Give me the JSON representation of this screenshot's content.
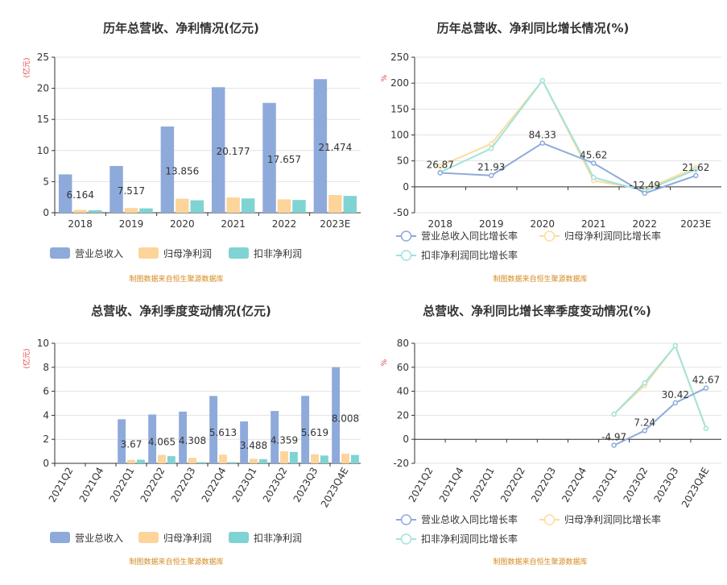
{
  "colors": {
    "revenue": "#8eaadb",
    "parent_profit": "#fdd49a",
    "deducted_profit": "#7fd3d3",
    "revenue_line": "#8eaadb",
    "parent_line": "#fddc9a",
    "deducted_line": "#9fe3dc",
    "source_text": "#d48a1f",
    "unit_text": "#e4393c"
  },
  "source": "制图数据来自恒生聚源数据库",
  "chart_data": [
    {
      "type": "bar",
      "title": "历年总营收、净利情况(亿元)",
      "ylabel": "(亿元)",
      "ylim": [
        0,
        25
      ],
      "yticks": [
        0,
        5,
        10,
        15,
        20,
        25
      ],
      "categories": [
        "2018",
        "2019",
        "2020",
        "2021",
        "2022",
        "2023E"
      ],
      "series": [
        {
          "name": "营业总收入",
          "values": [
            6.164,
            7.517,
            13.856,
            20.177,
            17.657,
            21.474
          ]
        },
        {
          "name": "归母净利润",
          "values": [
            0.45,
            0.75,
            2.25,
            2.45,
            2.15,
            2.85
          ]
        },
        {
          "name": "扣非净利润",
          "values": [
            0.4,
            0.7,
            2.0,
            2.3,
            2.05,
            2.7
          ]
        }
      ],
      "data_labels": [
        "6.164",
        "7.517",
        "13.856",
        "20.177",
        "17.657",
        "21.474"
      ],
      "grid": true,
      "legend": "bottom"
    },
    {
      "type": "line",
      "title": "历年总营收、净利同比增长情况(%)",
      "ylabel": "%",
      "ylim": [
        -50,
        250
      ],
      "yticks": [
        -50,
        0,
        50,
        100,
        150,
        200,
        250
      ],
      "categories": [
        "2018",
        "2019",
        "2020",
        "2021",
        "2022",
        "2023E"
      ],
      "series": [
        {
          "name": "营业总收入同比增长率",
          "values": [
            26.87,
            21.93,
            84.33,
            45.62,
            -12.49,
            21.62
          ]
        },
        {
          "name": "归母净利润同比增长率",
          "values": [
            40,
            83,
            205,
            12,
            -5,
            37
          ]
        },
        {
          "name": "扣非净利润同比增长率",
          "values": [
            28,
            74,
            205,
            18,
            -8,
            33
          ]
        }
      ],
      "data_labels": [
        "26.87",
        "21.93",
        "84.33",
        "45.62",
        "-12.49",
        "21.62"
      ],
      "grid": true,
      "legend": "bottom"
    },
    {
      "type": "bar",
      "title": "总营收、净利季度变动情况(亿元)",
      "ylabel": "(亿元)",
      "ylim": [
        0,
        10
      ],
      "yticks": [
        0,
        2,
        4,
        6,
        8,
        10
      ],
      "categories": [
        "2021Q2",
        "2021Q4",
        "2022Q1",
        "2022Q2",
        "2022Q3",
        "2022Q4",
        "2023Q1",
        "2023Q2",
        "2023Q3",
        "2023Q4E"
      ],
      "series": [
        {
          "name": "营业总收入",
          "values": [
            null,
            null,
            3.67,
            4.065,
            4.308,
            5.613,
            3.488,
            4.359,
            5.619,
            8.008
          ]
        },
        {
          "name": "归母净利润",
          "values": [
            null,
            null,
            0.28,
            0.7,
            0.45,
            0.72,
            0.38,
            1.0,
            0.75,
            0.8
          ]
        },
        {
          "name": "扣非净利润",
          "values": [
            null,
            null,
            0.3,
            0.6,
            0.1,
            0.1,
            0.35,
            0.95,
            0.65,
            0.7
          ]
        }
      ],
      "data_labels": [
        "",
        "",
        "3.67",
        "4.065",
        "4.308",
        "5.613",
        "3.488",
        "4.359",
        "5.619",
        "8.008"
      ],
      "grid": true,
      "legend": "bottom"
    },
    {
      "type": "line",
      "title": "总营收、净利同比增长率季度变动情况(%)",
      "ylabel": "%",
      "ylim": [
        -20,
        80
      ],
      "yticks": [
        -20,
        0,
        20,
        40,
        60,
        80
      ],
      "categories": [
        "2021Q2",
        "2021Q4",
        "2022Q1",
        "2022Q2",
        "2022Q3",
        "2022Q4",
        "2023Q1",
        "2023Q2",
        "2023Q3",
        "2023Q4E"
      ],
      "series": [
        {
          "name": "营业总收入同比增长率",
          "values": [
            null,
            null,
            null,
            null,
            null,
            null,
            -4.97,
            7.24,
            30.42,
            42.67
          ]
        },
        {
          "name": "归母净利润同比增长率",
          "values": [
            null,
            null,
            null,
            null,
            null,
            null,
            21,
            45,
            78,
            9
          ]
        },
        {
          "name": "扣非净利润同比增长率",
          "values": [
            null,
            null,
            null,
            null,
            null,
            null,
            21,
            47,
            78,
            9
          ]
        }
      ],
      "data_labels": [
        "",
        "",
        "",
        "",
        "",
        "",
        "-4.97",
        "7.24",
        "30.42",
        "42.67"
      ],
      "grid": true,
      "legend": "bottom"
    }
  ]
}
